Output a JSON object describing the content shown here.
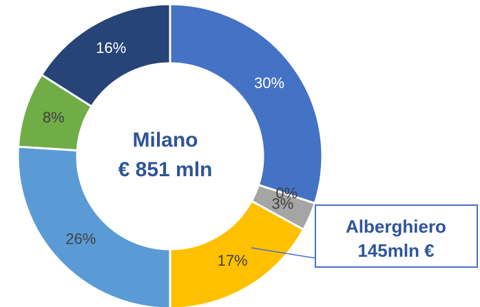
{
  "chart_data": {
    "type": "donut",
    "values": [
      30,
      0,
      3,
      17,
      26,
      8,
      16
    ],
    "value_labels": [
      "30%",
      "0%",
      "3%",
      "17%",
      "26%",
      "8%",
      "16%"
    ],
    "colors": [
      "#4472c4",
      "#ed7d31",
      "#a5a5a5",
      "#ffc000",
      "#5b9bd5",
      "#70ad47",
      "#264478"
    ],
    "label_colors": [
      "#ffffff",
      "#404040",
      "#404040",
      "#404040",
      "#404040",
      "#404040",
      "#ffffff"
    ],
    "center_text": [
      "Milano",
      "€ 851 mln"
    ],
    "callout": [
      "Alberghiero",
      "145mln €"
    ]
  }
}
